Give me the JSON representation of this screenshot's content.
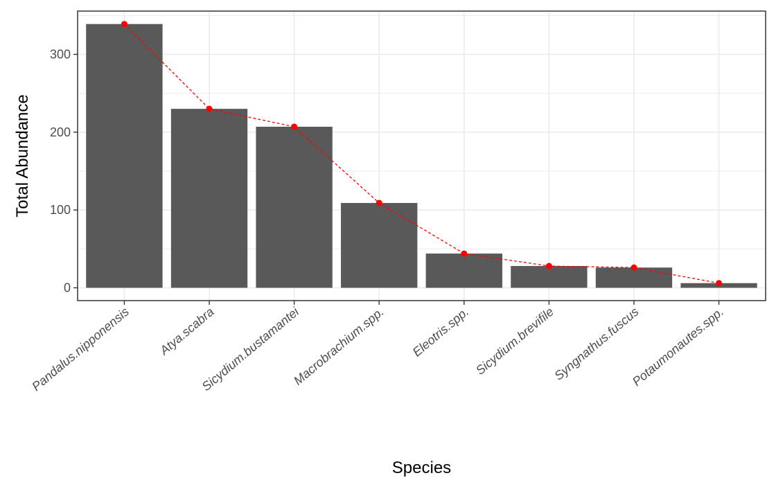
{
  "chart_data": {
    "type": "bar",
    "xlabel": "Species",
    "ylabel": "Total Abundance",
    "categories": [
      "Pandalus.nipponensis",
      "Atya.scabra",
      "Sicydium.bustamantei",
      "Macrobrachium.spp.",
      "Eleotris.spp.",
      "Sicydium.brevifile",
      "Syngnathus.fuscus",
      "Potaumonautes.spp."
    ],
    "series": [
      {
        "values": [
          339,
          230,
          207,
          109,
          44,
          28,
          26,
          6
        ]
      },
      {
        "values": [
          339,
          230,
          207,
          109,
          44,
          28,
          26,
          6
        ]
      }
    ],
    "yticks": [
      0,
      100,
      200,
      300
    ],
    "ylim": [
      0,
      340
    ],
    "grid": true,
    "colors": {
      "bar": "#595959",
      "line": "#ff0000",
      "grid": "#ebebeb",
      "border": "#333333"
    }
  }
}
